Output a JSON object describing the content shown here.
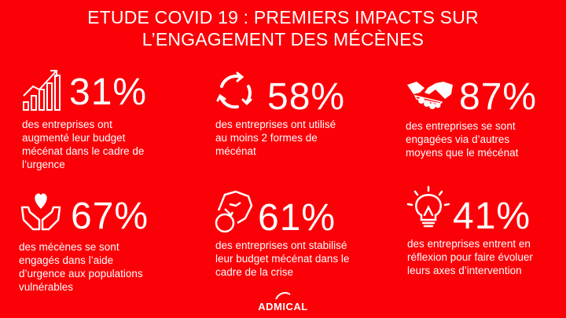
{
  "title": {
    "line1": "ETUDE COVID 19 : PREMIERS IMPACTS SUR",
    "line2": "L’ENGAGEMENT DES MÉCÈNES"
  },
  "stats": [
    {
      "icon": "bar-chart-growth-icon",
      "value": "31%",
      "text": "des entreprises ont\naugmenté leur budget\nmécénat dans le cadre de\nl’urgence"
    },
    {
      "icon": "circular-arrows-icon",
      "value": "58%",
      "text": "des entreprises ont utilisé\nau moins 2 formes de\nmécénat"
    },
    {
      "icon": "handshake-icon",
      "value": "87%",
      "text": "des entreprises se sont\nengagées via d’autres\nmoyens que le mécénat"
    },
    {
      "icon": "hands-heart-icon",
      "value": "67%",
      "text": "des mécènes se sont\nengagés dans l’aide\nd’urgence aux populations\nvulnérables"
    },
    {
      "icon": "hand-coin-icon",
      "value": "61%",
      "text": "des entreprises ont stabilisé\nleur budget mécénat dans le\ncadre de la crise"
    },
    {
      "icon": "lightbulb-icon",
      "value": "41%",
      "text": "des entreprises entrent en\nréflexion pour faire évoluer\nleurs axes d’intervention"
    }
  ],
  "logo": {
    "text": "ADMICAL"
  }
}
